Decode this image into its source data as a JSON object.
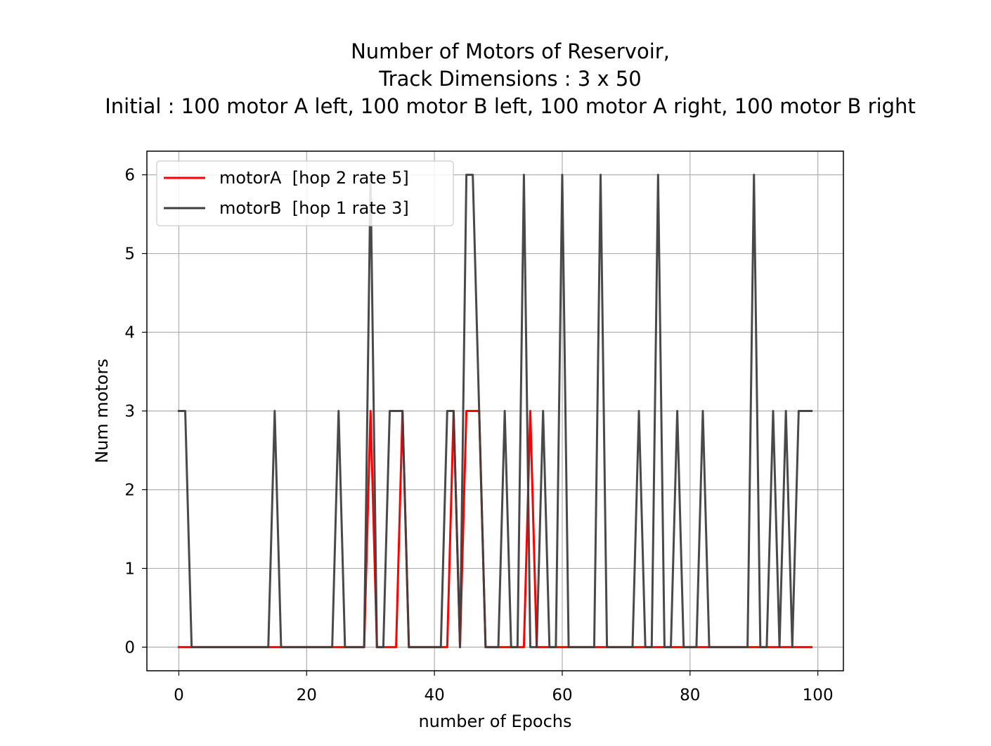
{
  "chart_data": {
    "type": "line",
    "title": "Number of Motors of Reservoir,\nTrack Dimensions : 3 x 50\nInitial : 100 motor A left, 100 motor B left, 100 motor A right, 100 motor B right",
    "xlabel": "number of Epochs",
    "ylabel": "Num motors",
    "xlim": [
      -5,
      104
    ],
    "ylim": [
      -0.3,
      6.3
    ],
    "xticks": [
      0,
      20,
      40,
      60,
      80,
      100
    ],
    "yticks": [
      0,
      1,
      2,
      3,
      4,
      5,
      6
    ],
    "grid": true,
    "legend_position": "top-left",
    "series": [
      {
        "name": "motorA  [hop 2 rate 5]",
        "color": "#ff0000",
        "x": [
          0,
          1,
          2,
          3,
          4,
          5,
          6,
          7,
          8,
          9,
          10,
          11,
          12,
          13,
          14,
          15,
          16,
          17,
          18,
          19,
          20,
          21,
          22,
          23,
          24,
          25,
          26,
          27,
          28,
          29,
          30,
          31,
          32,
          33,
          34,
          35,
          36,
          37,
          38,
          39,
          40,
          41,
          42,
          43,
          44,
          45,
          46,
          47,
          48,
          49,
          50,
          51,
          52,
          53,
          54,
          55,
          56,
          57,
          58,
          59,
          60,
          61,
          62,
          63,
          64,
          65,
          66,
          67,
          68,
          69,
          70,
          71,
          72,
          73,
          74,
          75,
          76,
          77,
          78,
          79,
          80,
          81,
          82,
          83,
          84,
          85,
          86,
          87,
          88,
          89,
          90,
          91,
          92,
          93,
          94,
          95,
          96,
          97,
          98,
          99
        ],
        "values": [
          0,
          0,
          0,
          0,
          0,
          0,
          0,
          0,
          0,
          0,
          0,
          0,
          0,
          0,
          0,
          0,
          0,
          0,
          0,
          0,
          0,
          0,
          0,
          0,
          0,
          0,
          0,
          0,
          0,
          0,
          3,
          0,
          0,
          0,
          0,
          3,
          0,
          0,
          0,
          0,
          0,
          0,
          0,
          3,
          0,
          3,
          3,
          3,
          0,
          0,
          0,
          0,
          0,
          0,
          0,
          3,
          0,
          0,
          0,
          0,
          0,
          0,
          0,
          0,
          0,
          0,
          0,
          0,
          0,
          0,
          0,
          0,
          0,
          0,
          0,
          0,
          0,
          0,
          0,
          0,
          0,
          0,
          0,
          0,
          0,
          0,
          0,
          0,
          0,
          0,
          0,
          0,
          0,
          0,
          0,
          0,
          0,
          0,
          0,
          0
        ]
      },
      {
        "name": "motorB  [hop 1 rate 3]",
        "color": "#3f3f3f",
        "x": [
          0,
          1,
          2,
          3,
          4,
          5,
          6,
          7,
          8,
          9,
          10,
          11,
          12,
          13,
          14,
          15,
          16,
          17,
          18,
          19,
          20,
          21,
          22,
          23,
          24,
          25,
          26,
          27,
          28,
          29,
          30,
          31,
          32,
          33,
          34,
          35,
          36,
          37,
          38,
          39,
          40,
          41,
          42,
          43,
          44,
          45,
          46,
          47,
          48,
          49,
          50,
          51,
          52,
          53,
          54,
          55,
          56,
          57,
          58,
          59,
          60,
          61,
          62,
          63,
          64,
          65,
          66,
          67,
          68,
          69,
          70,
          71,
          72,
          73,
          74,
          75,
          76,
          77,
          78,
          79,
          80,
          81,
          82,
          83,
          84,
          85,
          86,
          87,
          88,
          89,
          90,
          91,
          92,
          93,
          94,
          95,
          96,
          97,
          98,
          99
        ],
        "values": [
          3,
          3,
          0,
          0,
          0,
          0,
          0,
          0,
          0,
          0,
          0,
          0,
          0,
          0,
          0,
          3,
          0,
          0,
          0,
          0,
          0,
          0,
          0,
          0,
          0,
          3,
          0,
          0,
          0,
          0,
          6,
          0,
          0,
          3,
          3,
          3,
          0,
          0,
          0,
          0,
          0,
          0,
          3,
          3,
          0,
          6,
          6,
          3,
          0,
          0,
          0,
          3,
          0,
          0,
          6,
          0,
          0,
          3,
          0,
          0,
          6,
          0,
          0,
          0,
          0,
          0,
          6,
          0,
          0,
          0,
          0,
          0,
          3,
          0,
          0,
          6,
          0,
          0,
          3,
          0,
          0,
          0,
          3,
          0,
          0,
          0,
          0,
          0,
          0,
          0,
          6,
          0,
          0,
          3,
          0,
          3,
          0,
          3,
          3,
          3
        ]
      }
    ]
  }
}
